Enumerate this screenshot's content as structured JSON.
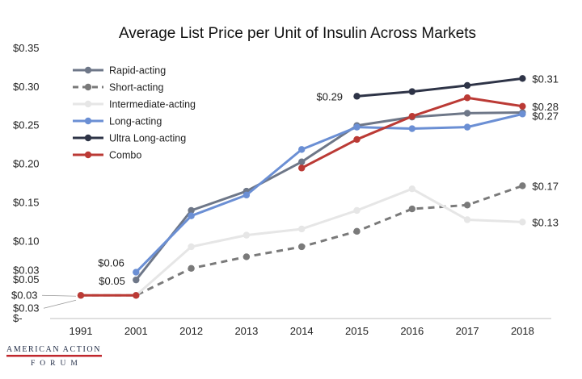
{
  "chart_data": {
    "type": "line",
    "title": "Average List Price per Unit of Insulin Across Markets",
    "categories": [
      "1991",
      "2001",
      "2012",
      "2013",
      "2014",
      "2015",
      "2016",
      "2017",
      "2018"
    ],
    "ylim": [
      0,
      0.35
    ],
    "yticks": [
      0,
      0.05,
      0.1,
      0.15,
      0.2,
      0.25,
      0.3,
      0.35
    ],
    "ytick_labels": [
      "$-",
      "$0.05",
      "$0.10",
      "$0.15",
      "$0.20",
      "$0.25",
      "$0.30",
      "$0.35"
    ],
    "grid": false,
    "legend_position": "top-left",
    "series": [
      {
        "name": "Rapid-acting",
        "color": "#6e7788",
        "dash": "solid",
        "values": [
          null,
          0.05,
          0.14,
          0.165,
          0.203,
          0.25,
          0.261,
          0.266,
          0.267
        ]
      },
      {
        "name": "Short-acting",
        "color": "#7a7a7a",
        "dash": "dashed",
        "values": [
          0.03,
          0.03,
          0.065,
          0.08,
          0.093,
          0.113,
          0.142,
          0.147,
          0.172
        ]
      },
      {
        "name": "Intermediate-acting",
        "color": "#e6e6e6",
        "dash": "solid",
        "values": [
          0.03,
          0.03,
          0.093,
          0.108,
          0.116,
          0.14,
          0.168,
          0.128,
          0.125
        ]
      },
      {
        "name": "Long-acting",
        "color": "#6b8fd4",
        "dash": "solid",
        "values": [
          null,
          0.06,
          0.133,
          0.16,
          0.219,
          0.248,
          0.246,
          0.248,
          0.265
        ]
      },
      {
        "name": "Ultra Long-acting",
        "color": "#2e3447",
        "dash": "solid",
        "values": [
          null,
          null,
          null,
          null,
          null,
          0.288,
          0.294,
          0.302,
          0.311
        ]
      },
      {
        "name": "Combo",
        "color": "#bb3a35",
        "dash": "solid",
        "values": [
          0.03,
          0.03,
          null,
          null,
          0.195,
          0.232,
          0.262,
          0.286,
          0.275
        ]
      }
    ],
    "annotations": [
      {
        "text": "$0.03",
        "series": "Intermediate-acting",
        "index": 0
      },
      {
        "text": "$0.03",
        "series": "Combo",
        "index": 0
      },
      {
        "text": "$0.03",
        "series": "Short-acting",
        "index": 0
      },
      {
        "text": "$0.06",
        "series": "Long-acting",
        "index": 1
      },
      {
        "text": "$0.05",
        "series": "Rapid-acting",
        "index": 1
      },
      {
        "text": "$0.29",
        "series": "Ultra Long-acting",
        "index": 5
      },
      {
        "text": "$0.31",
        "series": "Ultra Long-acting",
        "index": 8
      },
      {
        "text": "$0.28",
        "series": "Combo",
        "index": 8
      },
      {
        "text": "$0.27",
        "series": "Long-acting",
        "index": 8
      },
      {
        "text": "$0.17",
        "series": "Short-acting",
        "index": 8
      },
      {
        "text": "$0.13",
        "series": "Intermediate-acting",
        "index": 8
      }
    ]
  },
  "logo": {
    "line1": "AMERICAN ACTION",
    "line2": "FORUM",
    "accent_color": "#c0272d"
  }
}
